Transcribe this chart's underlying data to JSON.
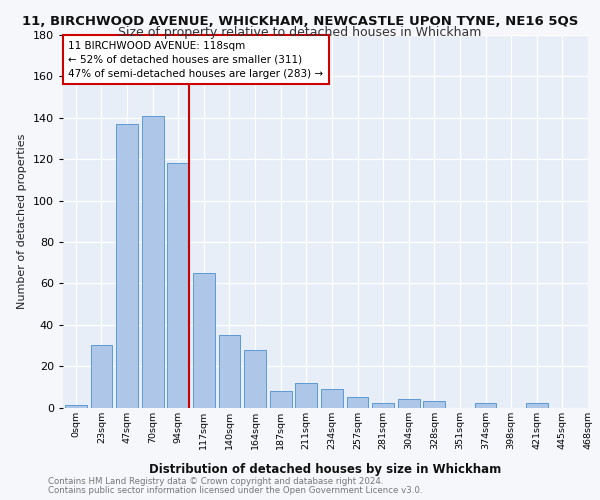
{
  "title": "11, BIRCHWOOD AVENUE, WHICKHAM, NEWCASTLE UPON TYNE, NE16 5QS",
  "subtitle": "Size of property relative to detached houses in Whickham",
  "xlabel": "Distribution of detached houses by size in Whickham",
  "ylabel": "Number of detached properties",
  "bar_color": "#aec6e8",
  "bar_edge_color": "#5b9bd5",
  "bins": [
    "0sqm",
    "23sqm",
    "47sqm",
    "70sqm",
    "94sqm",
    "117sqm",
    "140sqm",
    "164sqm",
    "187sqm",
    "211sqm",
    "234sqm",
    "257sqm",
    "281sqm",
    "304sqm",
    "328sqm",
    "351sqm",
    "374sqm",
    "398sqm",
    "421sqm",
    "445sqm",
    "468sqm"
  ],
  "values": [
    1,
    30,
    137,
    141,
    118,
    65,
    35,
    28,
    8,
    12,
    9,
    5,
    2,
    4,
    3,
    0,
    2,
    0,
    2,
    0
  ],
  "ylim": [
    0,
    180
  ],
  "yticks": [
    0,
    20,
    40,
    60,
    80,
    100,
    120,
    140,
    160,
    180
  ],
  "annotation_line1": "11 BIRCHWOOD AVENUE: 118sqm",
  "annotation_line2": "← 52% of detached houses are smaller (311)",
  "annotation_line3": "47% of semi-detached houses are larger (283) →",
  "footer_line1": "Contains HM Land Registry data © Crown copyright and database right 2024.",
  "footer_line2": "Contains public sector information licensed under the Open Government Licence v3.0.",
  "bg_color": "#e8eef7",
  "fig_bg_color": "#f5f7fb",
  "grid_color": "#ffffff",
  "vline_color": "#cc0000",
  "ann_box_edge": "#cc0000",
  "ann_box_face": "#ffffff"
}
